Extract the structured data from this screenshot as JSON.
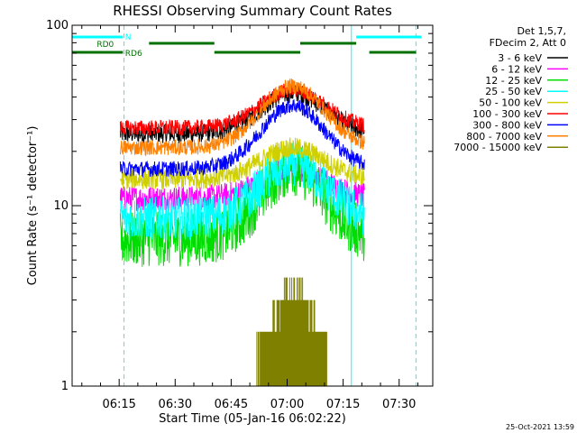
{
  "chart_data": {
    "type": "line",
    "title": "RHESSI Observing Summary Count Rates",
    "xlabel": "Start Time (05-Jan-16 06:02:22)",
    "ylabel": "Count Rate (s⁻¹ detector⁻¹)",
    "footer": "25-Oct-2021 13:59",
    "x_unit": "minutes after 06:00",
    "xlim": [
      2.4,
      99.0
    ],
    "ylim": [
      1,
      100
    ],
    "yscale": "log",
    "x_ticks": [
      {
        "v": 15,
        "label": "06:15"
      },
      {
        "v": 30,
        "label": "06:30"
      },
      {
        "v": 45,
        "label": "06:45"
      },
      {
        "v": 60,
        "label": "07:00"
      },
      {
        "v": 75,
        "label": "07:15"
      },
      {
        "v": 90,
        "label": "07:30"
      }
    ],
    "y_ticks": [
      {
        "v": 1,
        "label": "1"
      },
      {
        "v": 10,
        "label": "10"
      },
      {
        "v": 100,
        "label": "100"
      }
    ],
    "legend": {
      "position": "top-right",
      "header": [
        "Det 1,5,7,",
        "FDecim 2, Att 0"
      ]
    },
    "data_start": 15.3,
    "data_end": 80.7,
    "series": [
      {
        "name": "3 - 6 keV",
        "color": "#000000",
        "base": 25,
        "peak": 42,
        "noise": 0.12
      },
      {
        "name": "6 - 12 keV",
        "color": "#ff00ff",
        "base": 11,
        "peak": 16,
        "noise": 0.16
      },
      {
        "name": "12 - 25 keV",
        "color": "#00dd00",
        "base": 6.5,
        "peak": 16,
        "noise": 0.35
      },
      {
        "name": "25 - 50 keV",
        "color": "#00ffff",
        "base": 8.5,
        "peak": 17,
        "noise": 0.28
      },
      {
        "name": "50 - 100 keV",
        "color": "#d0d000",
        "base": 14,
        "peak": 21,
        "noise": 0.13
      },
      {
        "name": "100 - 300 keV",
        "color": "#ff0000",
        "base": 27,
        "peak": 44,
        "noise": 0.1
      },
      {
        "name": "300 - 800 keV",
        "color": "#0000ff",
        "base": 16,
        "peak": 36,
        "noise": 0.1
      },
      {
        "name": "800 - 7000 keV",
        "color": "#ff8000",
        "base": 21,
        "peak": 46,
        "noise": 0.1
      },
      {
        "name": "7000 - 15000 keV",
        "color": "#808000",
        "base": 1,
        "peak": 4,
        "noise": 0.0
      }
    ],
    "flag_bars": [
      {
        "name": "N",
        "color": "#00ffff",
        "y_level": 1,
        "segments": [
          [
            2.4,
            16.0
          ],
          [
            78.5,
            96.0
          ]
        ]
      },
      {
        "name": "RD0",
        "color": "#007000",
        "y_level": 2,
        "segments": [
          [
            23.0,
            40.5
          ],
          [
            63.5,
            78.5
          ]
        ]
      },
      {
        "name": "RD6",
        "color": "#007000",
        "y_level": 3,
        "segments": [
          [
            2.4,
            16.0
          ],
          [
            40.5,
            63.5
          ],
          [
            82.0,
            94.5
          ]
        ]
      }
    ],
    "vlines": [
      {
        "x": 16.3,
        "style": "dashed",
        "color": "#00ffff"
      },
      {
        "x": 77.2,
        "style": "solid",
        "color": "#00ffff"
      },
      {
        "x": 94.5,
        "style": "dashed",
        "color": "#00ffff"
      }
    ]
  }
}
